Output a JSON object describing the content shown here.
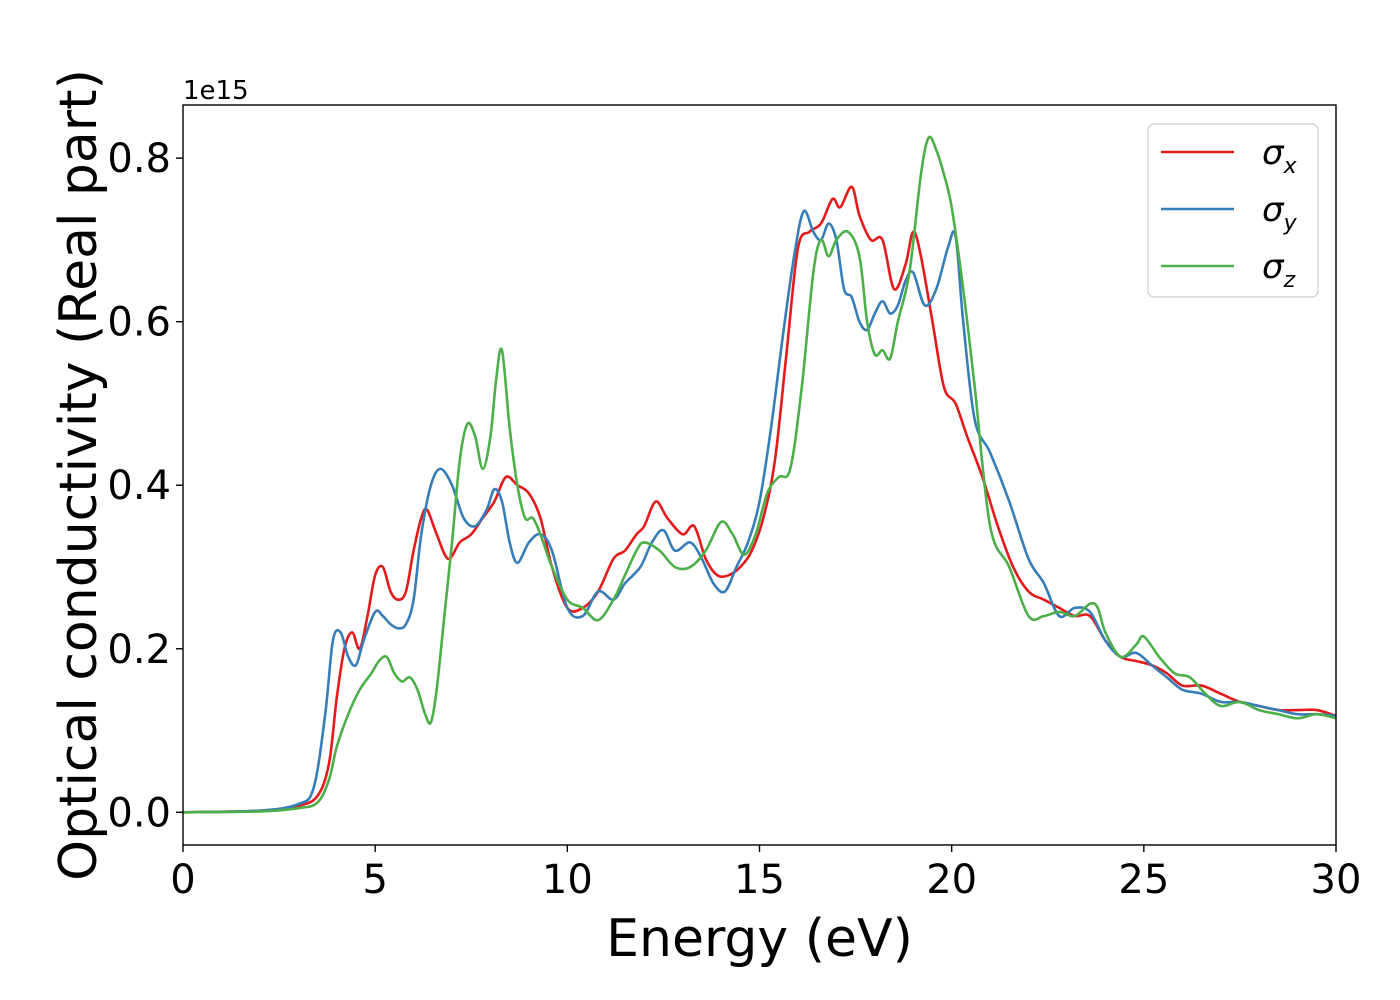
{
  "chart_data": {
    "type": "line",
    "title": "",
    "xlabel": "Energy (eV)",
    "ylabel": "Optical conductivity (Real part)",
    "y_offset_label": "1e15",
    "xlim": [
      0,
      30
    ],
    "ylim": [
      -0.04,
      0.865
    ],
    "x_ticks": [
      0,
      5,
      10,
      15,
      20,
      25,
      30
    ],
    "y_ticks": [
      0.0,
      0.2,
      0.4,
      0.6,
      0.8
    ],
    "x_tick_labels": [
      "0",
      "5",
      "10",
      "15",
      "20",
      "25",
      "30"
    ],
    "y_tick_labels": [
      "0.0",
      "0.2",
      "0.4",
      "0.6",
      "0.8"
    ],
    "grid": false,
    "legend_position": "top-right",
    "series": [
      {
        "name": "σx",
        "symbol": "σ",
        "subscript": "x",
        "color": "#e41a1c",
        "x": [
          0,
          2,
          3,
          3.5,
          3.8,
          4.0,
          4.2,
          4.4,
          4.6,
          4.8,
          5.0,
          5.2,
          5.4,
          5.6,
          5.8,
          6.0,
          6.2,
          6.35,
          6.6,
          6.9,
          7.2,
          7.5,
          7.8,
          8.1,
          8.4,
          8.7,
          9.0,
          9.3,
          9.6,
          10.0,
          10.4,
          10.8,
          11.2,
          11.5,
          11.8,
          12.0,
          12.3,
          12.6,
          13.0,
          13.3,
          13.6,
          13.9,
          14.2,
          14.5,
          14.8,
          15.1,
          15.4,
          15.7,
          16.0,
          16.3,
          16.6,
          16.9,
          17.1,
          17.4,
          17.6,
          17.9,
          18.2,
          18.5,
          18.8,
          19.0,
          19.2,
          19.5,
          19.8,
          20.1,
          20.4,
          20.8,
          21.2,
          21.6,
          22.0,
          22.4,
          22.8,
          23.2,
          23.6,
          24.0,
          24.4,
          24.8,
          25.2,
          25.6,
          26.0,
          26.5,
          27.0,
          27.5,
          28.0,
          28.5,
          29.0,
          29.5,
          30.0
        ],
        "y": [
          0.0,
          0.002,
          0.008,
          0.02,
          0.06,
          0.14,
          0.2,
          0.22,
          0.2,
          0.24,
          0.29,
          0.3,
          0.27,
          0.26,
          0.27,
          0.32,
          0.36,
          0.37,
          0.34,
          0.31,
          0.33,
          0.34,
          0.36,
          0.38,
          0.41,
          0.4,
          0.39,
          0.36,
          0.3,
          0.25,
          0.25,
          0.27,
          0.31,
          0.32,
          0.34,
          0.35,
          0.38,
          0.36,
          0.34,
          0.35,
          0.31,
          0.29,
          0.29,
          0.3,
          0.32,
          0.36,
          0.43,
          0.56,
          0.69,
          0.71,
          0.72,
          0.75,
          0.74,
          0.765,
          0.73,
          0.7,
          0.7,
          0.64,
          0.67,
          0.71,
          0.68,
          0.6,
          0.52,
          0.5,
          0.46,
          0.41,
          0.35,
          0.3,
          0.27,
          0.26,
          0.25,
          0.24,
          0.24,
          0.21,
          0.19,
          0.185,
          0.18,
          0.17,
          0.155,
          0.155,
          0.145,
          0.135,
          0.13,
          0.125,
          0.125,
          0.125,
          0.118
        ]
      },
      {
        "name": "σy",
        "symbol": "σ",
        "subscript": "y",
        "color": "#377eb8",
        "x": [
          0,
          2,
          3,
          3.4,
          3.7,
          3.9,
          4.1,
          4.3,
          4.5,
          4.7,
          5.0,
          5.2,
          5.4,
          5.6,
          5.8,
          6.0,
          6.2,
          6.45,
          6.7,
          7.0,
          7.3,
          7.6,
          7.9,
          8.1,
          8.3,
          8.5,
          8.7,
          9.0,
          9.3,
          9.6,
          10.0,
          10.4,
          10.8,
          11.2,
          11.5,
          11.9,
          12.2,
          12.5,
          12.8,
          13.2,
          13.5,
          13.8,
          14.1,
          14.4,
          14.7,
          15.0,
          15.3,
          15.6,
          15.9,
          16.15,
          16.4,
          16.6,
          16.8,
          17.0,
          17.2,
          17.4,
          17.6,
          17.8,
          18.0,
          18.2,
          18.4,
          18.6,
          18.8,
          19.0,
          19.3,
          19.6,
          19.9,
          20.1,
          20.3,
          20.6,
          21.0,
          21.5,
          22.0,
          22.4,
          22.8,
          23.2,
          23.6,
          24.0,
          24.4,
          24.8,
          25.2,
          25.6,
          26.0,
          26.5,
          27.0,
          27.5,
          28.0,
          28.5,
          29.0,
          29.5,
          30.0
        ],
        "y": [
          0.0,
          0.002,
          0.01,
          0.03,
          0.12,
          0.21,
          0.22,
          0.19,
          0.18,
          0.21,
          0.245,
          0.24,
          0.23,
          0.225,
          0.23,
          0.26,
          0.34,
          0.4,
          0.42,
          0.4,
          0.36,
          0.35,
          0.37,
          0.395,
          0.38,
          0.33,
          0.305,
          0.33,
          0.34,
          0.32,
          0.25,
          0.24,
          0.27,
          0.26,
          0.28,
          0.3,
          0.33,
          0.345,
          0.32,
          0.33,
          0.31,
          0.28,
          0.27,
          0.3,
          0.33,
          0.38,
          0.47,
          0.58,
          0.68,
          0.735,
          0.71,
          0.7,
          0.72,
          0.7,
          0.64,
          0.63,
          0.6,
          0.59,
          0.61,
          0.625,
          0.61,
          0.62,
          0.65,
          0.66,
          0.62,
          0.64,
          0.69,
          0.705,
          0.6,
          0.48,
          0.44,
          0.38,
          0.31,
          0.28,
          0.24,
          0.25,
          0.245,
          0.21,
          0.19,
          0.195,
          0.18,
          0.165,
          0.15,
          0.145,
          0.135,
          0.135,
          0.13,
          0.125,
          0.12,
          0.12,
          0.118
        ]
      },
      {
        "name": "σz",
        "symbol": "σ",
        "subscript": "z",
        "color": "#4daf4a",
        "x": [
          0,
          2,
          3,
          3.5,
          3.8,
          4.0,
          4.3,
          4.6,
          4.9,
          5.1,
          5.3,
          5.5,
          5.7,
          5.9,
          6.1,
          6.3,
          6.45,
          6.6,
          6.8,
          7.0,
          7.2,
          7.4,
          7.6,
          7.8,
          8.0,
          8.15,
          8.3,
          8.5,
          8.7,
          8.9,
          9.1,
          9.3,
          9.6,
          10.0,
          10.4,
          10.8,
          11.2,
          11.5,
          11.8,
          12.0,
          12.4,
          12.8,
          13.2,
          13.6,
          14.0,
          14.3,
          14.6,
          14.9,
          15.2,
          15.5,
          15.8,
          16.1,
          16.4,
          16.6,
          16.8,
          17.0,
          17.3,
          17.6,
          17.8,
          18.0,
          18.2,
          18.4,
          18.6,
          18.9,
          19.2,
          19.4,
          19.6,
          19.8,
          20.0,
          20.3,
          20.6,
          21.0,
          21.5,
          22.0,
          22.4,
          22.8,
          23.2,
          23.6,
          23.8,
          24.0,
          24.4,
          24.8,
          25.0,
          25.4,
          25.8,
          26.2,
          26.6,
          27.0,
          27.5,
          28.0,
          28.5,
          29.0,
          29.5,
          30.0
        ],
        "y": [
          0.0,
          0.001,
          0.005,
          0.012,
          0.04,
          0.08,
          0.12,
          0.15,
          0.17,
          0.185,
          0.19,
          0.17,
          0.16,
          0.165,
          0.15,
          0.12,
          0.11,
          0.15,
          0.24,
          0.33,
          0.43,
          0.475,
          0.46,
          0.42,
          0.46,
          0.53,
          0.565,
          0.47,
          0.4,
          0.36,
          0.36,
          0.34,
          0.3,
          0.26,
          0.25,
          0.235,
          0.26,
          0.29,
          0.32,
          0.33,
          0.32,
          0.3,
          0.3,
          0.32,
          0.355,
          0.34,
          0.315,
          0.34,
          0.39,
          0.41,
          0.42,
          0.52,
          0.66,
          0.7,
          0.68,
          0.7,
          0.71,
          0.68,
          0.6,
          0.56,
          0.565,
          0.555,
          0.6,
          0.66,
          0.78,
          0.825,
          0.81,
          0.78,
          0.74,
          0.64,
          0.52,
          0.35,
          0.3,
          0.24,
          0.24,
          0.245,
          0.24,
          0.255,
          0.25,
          0.22,
          0.19,
          0.205,
          0.215,
          0.19,
          0.17,
          0.165,
          0.145,
          0.13,
          0.135,
          0.125,
          0.12,
          0.115,
          0.12,
          0.115
        ]
      }
    ]
  }
}
